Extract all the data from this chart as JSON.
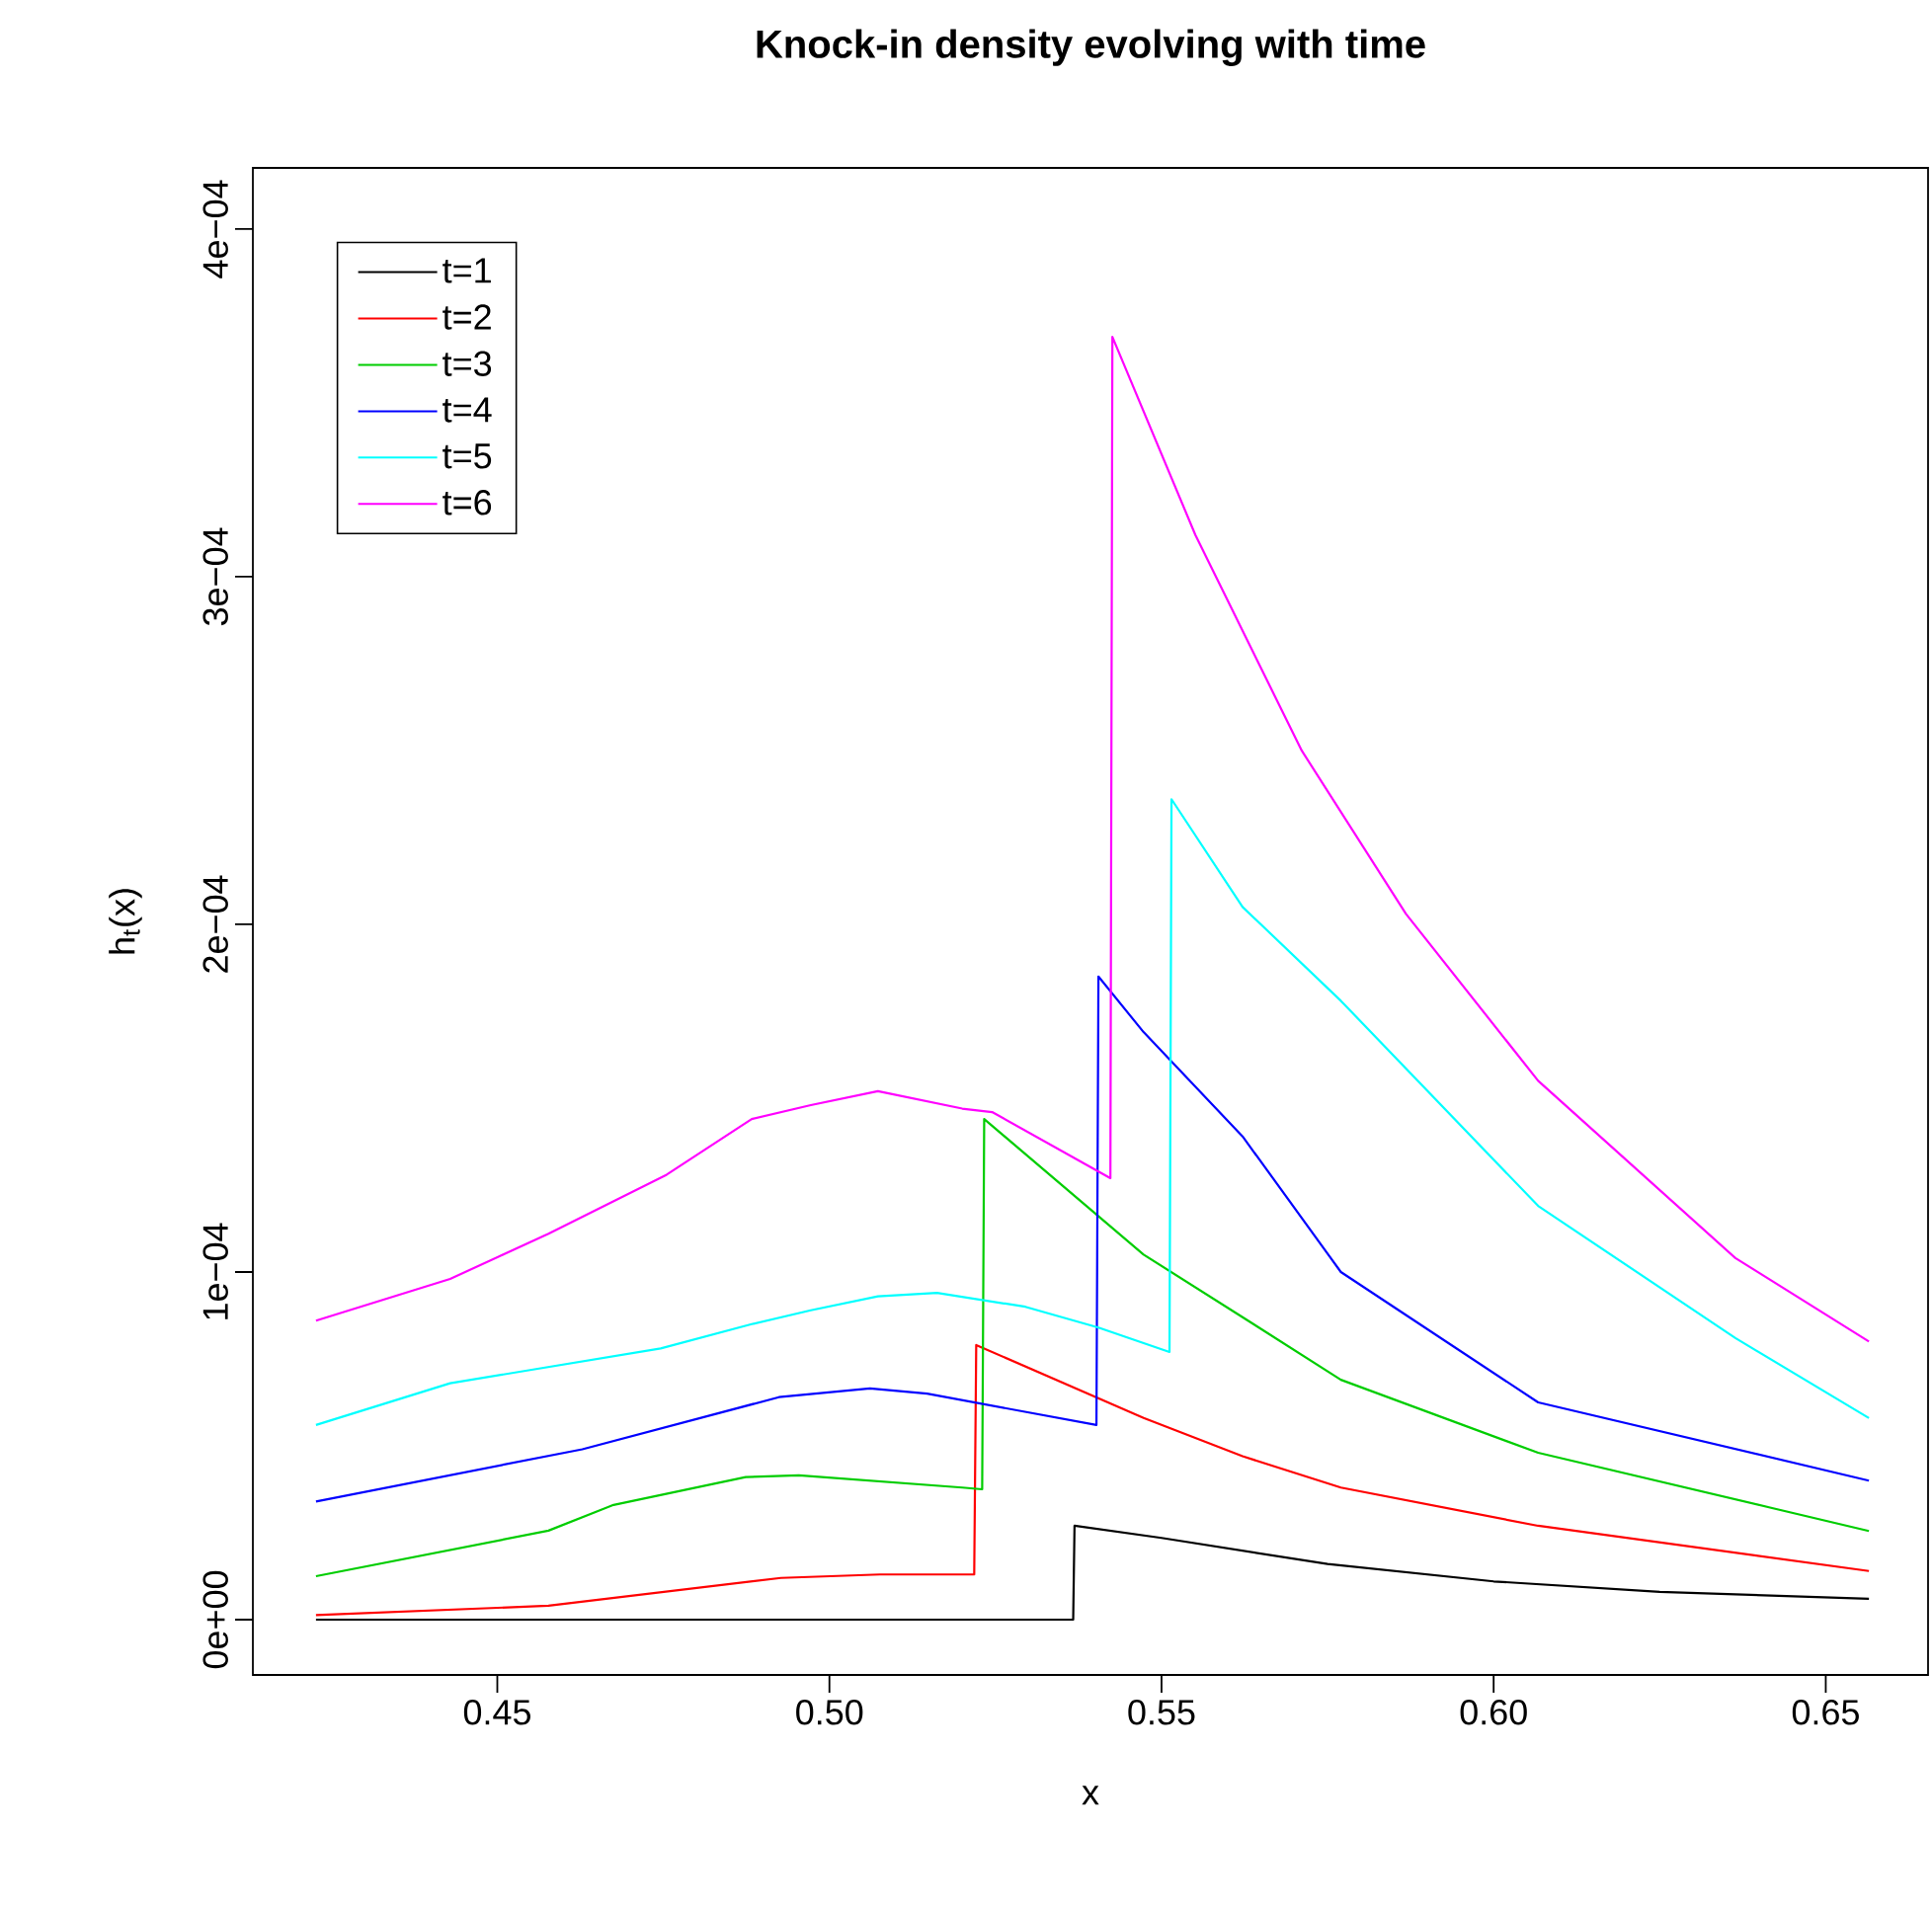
{
  "chart_data": {
    "type": "line",
    "title": "Knock-in density evolving with time",
    "xlabel": "x",
    "ylabel": "h$_{t}$(x)",
    "xlim": [
      0.4132,
      0.6654
    ],
    "ylim": [
      -1.59e-05,
      0.0004176
    ],
    "xticks": [
      0.45,
      {
        "value": 0.5,
        "label": "0.50"
      },
      0.55,
      {
        "value": 0.6,
        "label": "0.60"
      },
      0.65
    ],
    "yticks": [
      {
        "value": 0,
        "label": "0e+00"
      },
      {
        "value": 0.0001,
        "label": "1e−04"
      },
      {
        "value": 0.0002,
        "label": "2e−04"
      },
      {
        "value": 0.0003,
        "label": "3e−04"
      },
      {
        "value": 0.0004,
        "label": "4e−04"
      }
    ],
    "legend": "top left",
    "grid": false,
    "marker": "none",
    "line_style": "solid",
    "series": [
      {
        "name": "t=1",
        "color": "#000000",
        "x": [
          0.4227,
          0.5367,
          0.5369,
          0.55,
          0.575,
          0.6,
          0.625,
          0.6565
        ],
        "values": [
          0,
          0,
          2.7e-05,
          2.35e-05,
          1.6e-05,
          1.1e-05,
          8e-06,
          6e-06
        ]
      },
      {
        "name": "t=2",
        "color": "#ff0000",
        "x": [
          0.4227,
          0.4577,
          0.4927,
          0.5076,
          0.5218,
          0.5221,
          0.5473,
          0.5622,
          0.577,
          0.6067,
          0.6565
        ],
        "values": [
          1.3e-06,
          4e-06,
          1.2e-05,
          1.3e-05,
          1.3e-05,
          7.9e-05,
          5.8e-05,
          4.7e-05,
          3.8e-05,
          2.7e-05,
          1.4e-05
        ]
      },
      {
        "name": "t=3",
        "color": "#00cd00",
        "x": [
          0.4227,
          0.4577,
          0.4675,
          0.4874,
          0.4954,
          0.52,
          0.523,
          0.5233,
          0.5473,
          0.5622,
          0.577,
          0.6067,
          0.6565
        ],
        "values": [
          1.25e-05,
          2.56e-05,
          3.3e-05,
          4.1e-05,
          4.15e-05,
          3.8e-05,
          3.75e-05,
          0.000144,
          0.000105,
          8.7e-05,
          6.9e-05,
          4.8e-05,
          2.55e-05
        ]
      },
      {
        "name": "t=4",
        "color": "#0000ff",
        "x": [
          0.4227,
          0.4628,
          0.4924,
          0.5061,
          0.5147,
          0.5402,
          0.5405,
          0.5473,
          0.5622,
          0.577,
          0.6067,
          0.6565
        ],
        "values": [
          3.4e-05,
          4.9e-05,
          6.4e-05,
          6.65e-05,
          6.5e-05,
          5.6e-05,
          0.000185,
          0.000169,
          0.000139,
          0.0001,
          6.25e-05,
          4e-05
        ]
      },
      {
        "name": "t=5",
        "color": "#00ffff",
        "x": [
          0.4227,
          0.4429,
          0.4746,
          0.4883,
          0.4972,
          0.5073,
          0.5162,
          0.5295,
          0.5405,
          0.5512,
          0.5515,
          0.5622,
          0.577,
          0.6067,
          0.6364,
          0.6565
        ],
        "values": [
          5.6e-05,
          6.8e-05,
          7.8e-05,
          8.5e-05,
          8.9e-05,
          9.3e-05,
          9.4e-05,
          9e-05,
          8.4e-05,
          7.7e-05,
          0.000236,
          0.000205,
          0.000178,
          0.000119,
          8.1e-05,
          5.8e-05
        ]
      },
      {
        "name": "t=6",
        "color": "#ff00ff",
        "x": [
          0.4227,
          0.4429,
          0.4577,
          0.4755,
          0.4883,
          0.4972,
          0.5073,
          0.52,
          0.5245,
          0.5423,
          0.5426,
          0.5551,
          0.5711,
          0.5868,
          0.6067,
          0.6364,
          0.6565
        ],
        "values": [
          8.6e-05,
          9.8e-05,
          0.000111,
          0.000128,
          0.000144,
          0.000148,
          0.000152,
          0.000147,
          0.000146,
          0.000127,
          0.000369,
          0.000312,
          0.00025,
          0.000203,
          0.000155,
          0.000104,
          8e-05
        ]
      }
    ]
  }
}
